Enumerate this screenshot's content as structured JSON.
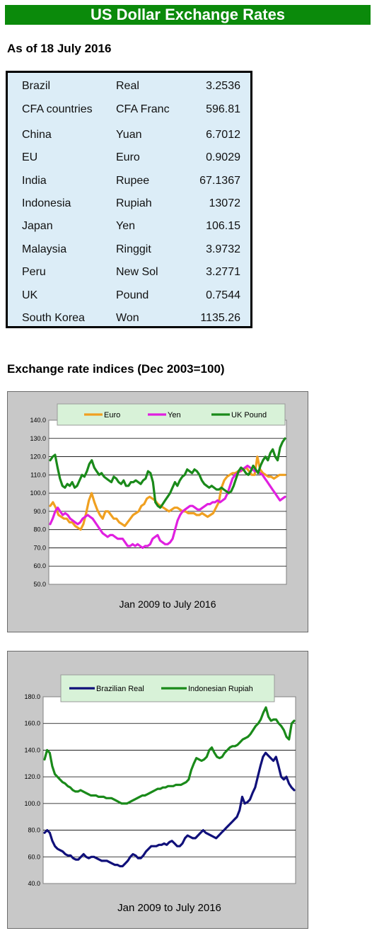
{
  "header": {
    "title": "US Dollar Exchange Rates"
  },
  "as_of": "As of 18 July 2016",
  "rates": [
    {
      "country": "Brazil",
      "currency": "Real",
      "value": "3.2536"
    },
    {
      "country": "CFA countries",
      "currency": "CFA Franc",
      "value": "596.81"
    },
    {
      "country": "China",
      "currency": "Yuan",
      "value": "6.7012"
    },
    {
      "country": "EU",
      "currency": "Euro",
      "value": "0.9029"
    },
    {
      "country": "India",
      "currency": "Rupee",
      "value": "67.1367"
    },
    {
      "country": "Indonesia",
      "currency": "Rupiah",
      "value": "13072"
    },
    {
      "country": "Japan",
      "currency": "Yen",
      "value": "106.15"
    },
    {
      "country": "Malaysia",
      "currency": "Ringgit",
      "value": "3.9732"
    },
    {
      "country": "Peru",
      "currency": "New Sol",
      "value": "3.2771"
    },
    {
      "country": "UK",
      "currency": "Pound",
      "value": "0.7544"
    },
    {
      "country": "South Korea",
      "currency": "Won",
      "value": "1135.26"
    }
  ],
  "indices_title": "Exchange rate indices (Dec 2003=100)",
  "chart_data": [
    {
      "type": "line",
      "title": "",
      "xlabel": "Jan 2009 to July 2016",
      "ylabel": "",
      "ylim": [
        50,
        140
      ],
      "yticks": [
        "50.0",
        "60.0",
        "70.0",
        "80.0",
        "90.0",
        "100.0",
        "110.0",
        "120.0",
        "130.0",
        "140.0"
      ],
      "grid": true,
      "legend": "top",
      "series": [
        {
          "name": "Euro",
          "color": "#f0a020",
          "values": [
            93,
            95,
            92,
            88,
            87,
            86,
            86,
            84,
            84,
            82,
            81,
            80,
            83,
            89,
            96,
            100,
            95,
            91,
            88,
            86,
            90,
            90,
            88,
            86,
            86,
            84,
            83,
            82,
            84,
            86,
            88,
            89,
            90,
            93,
            94,
            97,
            98,
            97,
            96,
            94,
            93,
            92,
            91,
            90,
            91,
            92,
            92,
            91,
            90,
            90,
            89,
            89,
            89,
            88,
            88,
            89,
            88,
            87,
            88,
            89,
            92,
            95,
            103,
            107,
            109,
            110,
            111,
            111,
            112,
            112,
            113,
            114,
            112,
            110,
            110,
            120,
            113,
            111,
            110,
            109,
            109,
            108,
            109,
            110,
            110,
            110
          ]
        },
        {
          "name": "Yen",
          "color": "#e020e0",
          "values": [
            83,
            86,
            90,
            92,
            90,
            88,
            89,
            88,
            86,
            85,
            84,
            83,
            84,
            86,
            87,
            88,
            87,
            86,
            84,
            82,
            80,
            78,
            77,
            76,
            77,
            77,
            76,
            75,
            75,
            75,
            73,
            71,
            71,
            72,
            71,
            72,
            71,
            70,
            71,
            71,
            72,
            75,
            76,
            77,
            74,
            73,
            72,
            72,
            73,
            75,
            80,
            85,
            88,
            90,
            91,
            92,
            93,
            93,
            92,
            91,
            91,
            92,
            93,
            94,
            94,
            95,
            95,
            96,
            95,
            96,
            97,
            100,
            104,
            108,
            110,
            111,
            112,
            113,
            114,
            115,
            114,
            113,
            112,
            112,
            111,
            110,
            108,
            106,
            104,
            102,
            100,
            98,
            96,
            97,
            98
          ]
        },
        {
          "name": "UK Pound",
          "color": "#1a8a1a",
          "values": [
            118,
            120,
            121,
            114,
            108,
            104,
            103,
            105,
            104,
            106,
            103,
            104,
            107,
            110,
            109,
            112,
            116,
            118,
            114,
            112,
            110,
            111,
            109,
            108,
            107,
            106,
            109,
            108,
            106,
            105,
            107,
            104,
            104,
            106,
            106,
            107,
            106,
            105,
            107,
            108,
            112,
            111,
            106,
            95,
            93,
            92,
            94,
            96,
            98,
            100,
            103,
            106,
            104,
            107,
            109,
            110,
            113,
            112,
            111,
            113,
            112,
            110,
            107,
            105,
            104,
            103,
            104,
            103,
            102,
            102,
            103,
            102,
            101,
            100,
            101,
            104,
            108,
            112,
            114,
            113,
            111,
            110,
            112,
            115,
            113,
            111,
            115,
            118,
            120,
            118,
            122,
            124,
            120,
            118,
            125,
            128,
            130
          ]
        }
      ]
    },
    {
      "type": "line",
      "title": "",
      "xlabel": "Jan 2009 to July 2016",
      "ylabel": "",
      "ylim": [
        40,
        180
      ],
      "yticks": [
        "40.0",
        "60.0",
        "80.0",
        "100.0",
        "120.0",
        "140.0",
        "160.0",
        "180.0"
      ],
      "grid": true,
      "legend": "top",
      "series": [
        {
          "name": "Brazilian Real",
          "color": "#10107a",
          "values": [
            78,
            80,
            78,
            72,
            68,
            66,
            65,
            64,
            62,
            61,
            61,
            59,
            58,
            58,
            60,
            62,
            60,
            59,
            60,
            60,
            59,
            58,
            57,
            57,
            57,
            56,
            55,
            54,
            54,
            53,
            53,
            55,
            57,
            60,
            62,
            61,
            59,
            59,
            61,
            64,
            66,
            68,
            68,
            68,
            69,
            69,
            70,
            69,
            71,
            72,
            70,
            68,
            68,
            70,
            74,
            76,
            75,
            74,
            74,
            76,
            78,
            80,
            78,
            77,
            76,
            75,
            74,
            76,
            78,
            80,
            82,
            84,
            86,
            88,
            90,
            95,
            105,
            100,
            101,
            103,
            108,
            112,
            120,
            128,
            135,
            138,
            136,
            134,
            132,
            135,
            128,
            120,
            118,
            120,
            115,
            112,
            110
          ]
        },
        {
          "name": "Indonesian Rupiah",
          "color": "#1a8a1a",
          "values": [
            133,
            140,
            138,
            128,
            122,
            120,
            118,
            116,
            115,
            113,
            112,
            110,
            109,
            109,
            110,
            109,
            108,
            107,
            106,
            106,
            106,
            105,
            105,
            105,
            104,
            104,
            104,
            103,
            102,
            101,
            100,
            100,
            100,
            101,
            102,
            103,
            104,
            105,
            106,
            106,
            107,
            108,
            109,
            110,
            111,
            111,
            112,
            112,
            113,
            113,
            113,
            114,
            114,
            114,
            115,
            116,
            118,
            125,
            130,
            134,
            133,
            132,
            133,
            135,
            140,
            142,
            138,
            135,
            134,
            135,
            138,
            140,
            142,
            143,
            143,
            144,
            146,
            148,
            149,
            150,
            152,
            155,
            158,
            160,
            163,
            168,
            172,
            165,
            162,
            163,
            163,
            160,
            158,
            155,
            150,
            148,
            160,
            162
          ]
        }
      ]
    }
  ]
}
